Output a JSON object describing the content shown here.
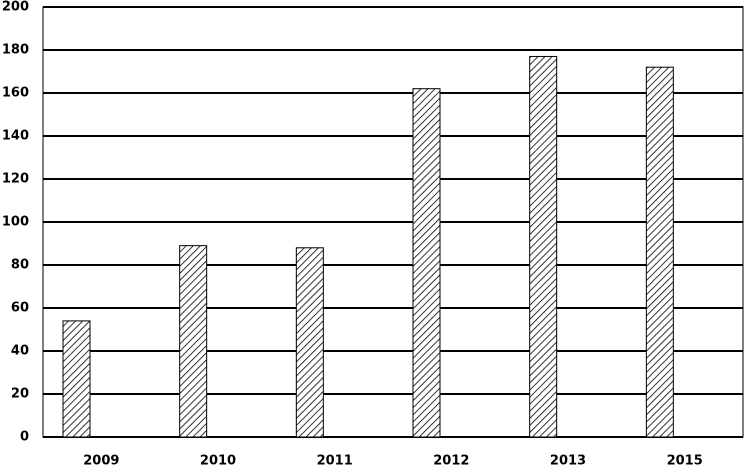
{
  "chart_data": {
    "type": "bar",
    "categories": [
      "2009",
      "2010",
      "2011",
      "2012",
      "2013",
      "2015"
    ],
    "values": [
      54,
      89,
      88,
      162,
      177,
      172
    ],
    "color": "#000000",
    "ylim": [
      0,
      200
    ],
    "yticks": [
      0,
      20,
      40,
      60,
      80,
      100,
      120,
      140,
      160,
      180,
      200
    ],
    "grid": true
  }
}
